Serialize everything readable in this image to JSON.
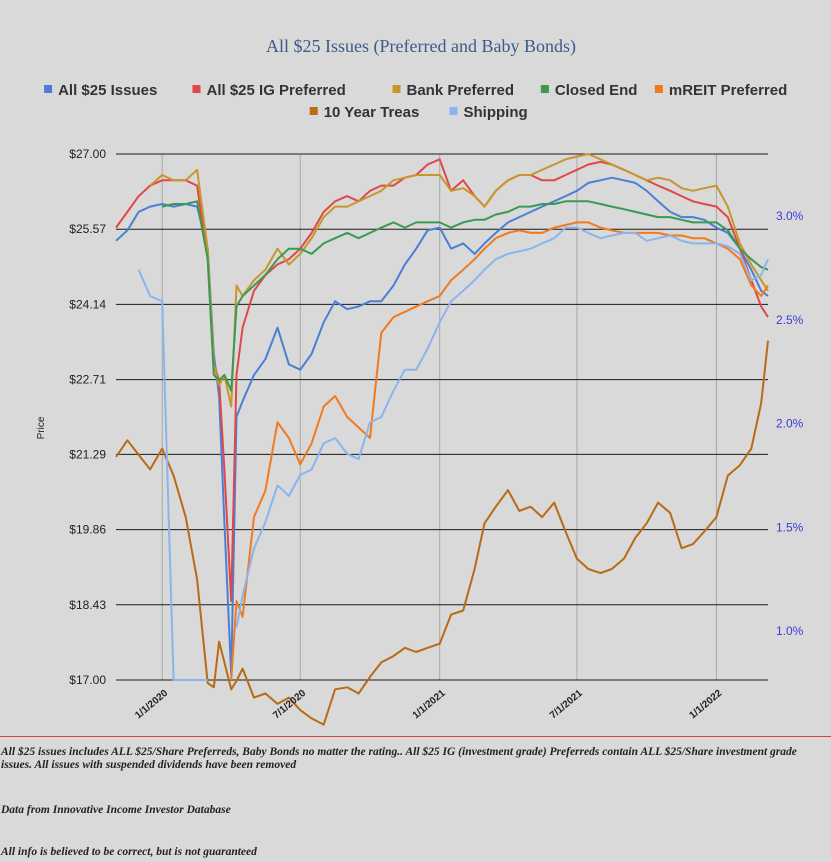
{
  "chart_data": {
    "type": "line",
    "title": "All $25 Issues (Preferred and Baby Bonds)",
    "ylabel": "Price",
    "y_ticks": [
      "$17.00",
      "$18.43",
      "$19.86",
      "$21.29",
      "$22.71",
      "$24.14",
      "$25.57",
      "$27.00"
    ],
    "ylim": [
      17.0,
      27.0
    ],
    "y2_ticks": [
      "1.0%",
      "1.5%",
      "2.0%",
      "2.5%",
      "3.0%"
    ],
    "y2lim": [
      0.765,
      3.3
    ],
    "x_ticks": [
      "1/1/2020",
      "7/1/2020",
      "1/1/2021",
      "7/1/2021",
      "1/1/2022"
    ],
    "x": [
      "2019-11-01",
      "2019-11-16",
      "2019-12-01",
      "2019-12-16",
      "2020-01-01",
      "2020-01-16",
      "2020-02-01",
      "2020-02-16",
      "2020-03-01",
      "2020-03-09",
      "2020-03-16",
      "2020-03-23",
      "2020-04-01",
      "2020-04-08",
      "2020-04-16",
      "2020-05-01",
      "2020-05-16",
      "2020-06-01",
      "2020-06-16",
      "2020-07-01",
      "2020-07-16",
      "2020-08-01",
      "2020-08-16",
      "2020-09-01",
      "2020-09-16",
      "2020-10-01",
      "2020-10-16",
      "2020-11-01",
      "2020-11-16",
      "2020-12-01",
      "2020-12-16",
      "2021-01-01",
      "2021-01-16",
      "2021-02-01",
      "2021-02-16",
      "2021-03-01",
      "2021-03-16",
      "2021-04-01",
      "2021-04-16",
      "2021-05-01",
      "2021-05-16",
      "2021-06-01",
      "2021-06-16",
      "2021-07-01",
      "2021-07-16",
      "2021-08-01",
      "2021-08-16",
      "2021-09-01",
      "2021-09-16",
      "2021-10-01",
      "2021-10-16",
      "2021-11-01",
      "2021-11-16",
      "2021-12-01",
      "2021-12-16",
      "2022-01-01",
      "2022-01-16",
      "2022-02-01",
      "2022-02-16",
      "2022-03-01",
      "2022-03-10"
    ],
    "grid": "on",
    "legend": "top",
    "series": [
      {
        "name": "All $25 Issues",
        "color": "#4a7fd6",
        "axis": "left",
        "values": [
          25.35,
          25.55,
          25.9,
          26.0,
          26.05,
          26.0,
          26.05,
          26.0,
          25.2,
          23.2,
          22.4,
          20.0,
          17.1,
          22.0,
          22.3,
          22.8,
          23.1,
          23.7,
          23.0,
          22.9,
          23.2,
          23.8,
          24.2,
          24.05,
          24.1,
          24.2,
          24.2,
          24.5,
          24.9,
          25.2,
          25.55,
          25.6,
          25.2,
          25.3,
          25.1,
          25.3,
          25.5,
          25.7,
          25.8,
          25.9,
          26.0,
          26.1,
          26.2,
          26.3,
          26.45,
          26.5,
          26.55,
          26.5,
          26.45,
          26.3,
          26.1,
          25.9,
          25.8,
          25.8,
          25.75,
          25.6,
          25.5,
          25.2,
          24.8,
          24.4,
          24.3
        ]
      },
      {
        "name": "All $25 IG Preferred",
        "color": "#e04848",
        "axis": "left",
        "values": [
          25.6,
          25.9,
          26.2,
          26.4,
          26.5,
          26.5,
          26.5,
          26.4,
          25.0,
          23.0,
          22.7,
          21.0,
          18.5,
          22.8,
          23.7,
          24.4,
          24.7,
          24.9,
          25.0,
          25.2,
          25.5,
          25.9,
          26.1,
          26.2,
          26.1,
          26.3,
          26.4,
          26.4,
          26.55,
          26.6,
          26.8,
          26.9,
          26.3,
          26.5,
          26.2,
          26.0,
          26.3,
          26.5,
          26.6,
          26.6,
          26.5,
          26.5,
          26.6,
          26.7,
          26.8,
          26.85,
          26.8,
          26.7,
          26.6,
          26.5,
          26.4,
          26.3,
          26.2,
          26.1,
          26.05,
          26.0,
          25.8,
          25.2,
          24.6,
          24.1,
          23.9
        ]
      },
      {
        "name": "Bank Preferred",
        "color": "#c8962a",
        "axis": "left",
        "values": [
          null,
          null,
          null,
          26.4,
          26.6,
          26.5,
          26.5,
          26.7,
          25.2,
          23.0,
          22.6,
          22.8,
          22.2,
          24.5,
          24.3,
          24.6,
          24.8,
          25.2,
          24.9,
          25.1,
          25.4,
          25.8,
          26.0,
          26.0,
          26.1,
          26.2,
          26.3,
          26.5,
          26.55,
          26.6,
          26.6,
          26.6,
          26.3,
          26.35,
          26.2,
          26.0,
          26.3,
          26.5,
          26.6,
          26.6,
          26.7,
          26.8,
          26.9,
          26.95,
          27.0,
          26.9,
          26.8,
          26.7,
          26.6,
          26.5,
          26.55,
          26.5,
          26.35,
          26.3,
          26.35,
          26.4,
          26.0,
          25.3,
          24.9,
          24.6,
          24.4
        ]
      },
      {
        "name": "Closed End",
        "color": "#3a9a50",
        "axis": "left",
        "values": [
          null,
          null,
          null,
          null,
          26.0,
          26.05,
          26.05,
          26.1,
          25.0,
          22.8,
          22.7,
          22.8,
          22.5,
          24.1,
          24.3,
          24.5,
          24.7,
          25.0,
          25.2,
          25.2,
          25.1,
          25.3,
          25.4,
          25.5,
          25.4,
          25.5,
          25.6,
          25.7,
          25.6,
          25.7,
          25.7,
          25.7,
          25.6,
          25.7,
          25.75,
          25.75,
          25.85,
          25.9,
          26.0,
          26.0,
          26.05,
          26.05,
          26.1,
          26.1,
          26.1,
          26.05,
          26.0,
          25.95,
          25.9,
          25.85,
          25.8,
          25.8,
          25.75,
          25.7,
          25.7,
          25.7,
          25.55,
          25.2,
          25.0,
          24.85,
          24.8
        ]
      },
      {
        "name": "mREIT Preferred",
        "color": "#f07a20",
        "axis": "left",
        "values": [
          null,
          null,
          null,
          null,
          null,
          null,
          null,
          null,
          null,
          null,
          null,
          null,
          17.0,
          18.5,
          18.2,
          20.1,
          20.6,
          21.9,
          21.6,
          21.1,
          21.5,
          22.2,
          22.4,
          22.0,
          21.8,
          21.6,
          23.6,
          23.9,
          24.0,
          24.1,
          24.2,
          24.3,
          24.6,
          24.8,
          25.0,
          25.2,
          25.4,
          25.5,
          25.55,
          25.5,
          25.5,
          25.6,
          25.65,
          25.7,
          25.7,
          25.6,
          25.55,
          25.5,
          25.5,
          25.5,
          25.5,
          25.45,
          25.45,
          25.4,
          25.4,
          25.3,
          25.2,
          25.0,
          24.5,
          24.3,
          24.5
        ]
      },
      {
        "name": "10 Year Treas",
        "color": "#b86a14",
        "axis": "right",
        "values": [
          1.84,
          1.92,
          1.85,
          1.78,
          1.88,
          1.75,
          1.55,
          1.25,
          0.75,
          0.73,
          0.95,
          0.85,
          0.72,
          0.76,
          0.82,
          0.68,
          0.7,
          0.65,
          0.68,
          0.62,
          0.58,
          0.55,
          0.72,
          0.73,
          0.7,
          0.78,
          0.85,
          0.88,
          0.92,
          0.9,
          0.92,
          0.94,
          1.08,
          1.1,
          1.3,
          1.52,
          1.6,
          1.68,
          1.58,
          1.6,
          1.55,
          1.62,
          1.48,
          1.35,
          1.3,
          1.28,
          1.3,
          1.35,
          1.45,
          1.52,
          1.62,
          1.57,
          1.4,
          1.42,
          1.48,
          1.55,
          1.75,
          1.8,
          1.88,
          2.1,
          2.4
        ]
      },
      {
        "name": "Shipping",
        "color": "#8ab4f0",
        "axis": "left",
        "values": [
          null,
          null,
          24.8,
          24.3,
          24.2,
          17.0,
          17.0,
          17.0,
          17.0,
          null,
          null,
          null,
          null,
          18.0,
          18.6,
          19.5,
          20.0,
          20.7,
          20.5,
          20.9,
          21.0,
          21.5,
          21.6,
          21.3,
          21.2,
          21.9,
          22.0,
          22.5,
          22.9,
          22.9,
          23.3,
          23.8,
          24.2,
          24.4,
          24.6,
          24.8,
          25.0,
          25.1,
          25.15,
          25.2,
          25.3,
          25.4,
          25.6,
          25.6,
          25.5,
          25.4,
          25.45,
          25.5,
          25.5,
          25.35,
          25.4,
          25.45,
          25.35,
          25.3,
          25.3,
          25.3,
          25.25,
          25.1,
          24.6,
          24.7,
          25.0
        ]
      }
    ]
  },
  "footer": {
    "note": "All $25 issues includes ALL $25/Share Preferreds, Baby Bonds no matter the rating..  All $25 IG (investment grade) Preferreds contain ALL $25/Share investment grade issues.  All issues with suspended dividends have been removed",
    "source": "Data from Innovative Income Investor Database",
    "disclaimer": "All info is believed to be correct, but is not guaranteed"
  }
}
